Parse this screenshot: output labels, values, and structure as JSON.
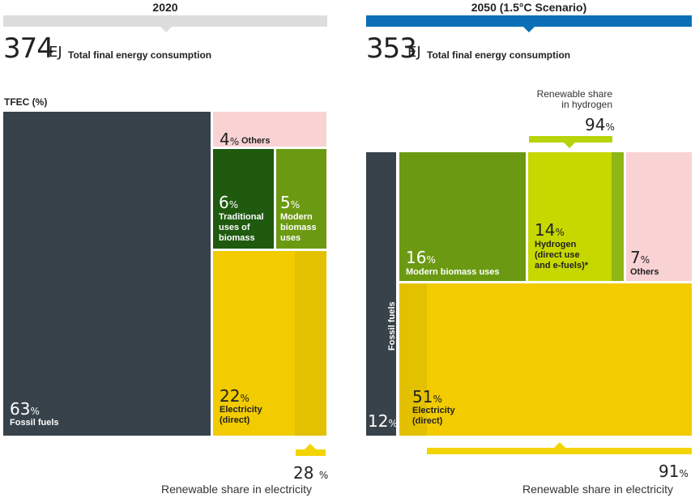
{
  "chart_data": {
    "type": "treemap",
    "panels": [
      {
        "id": "2020",
        "title": "2020",
        "total_value": "374",
        "total_unit": "EJ",
        "total_label": "Total final energy consumption",
        "axis_label": "TFEC (%)",
        "segments": [
          {
            "name": "Fossil fuels",
            "label": "Fossil fuels",
            "value": 63,
            "pct_text": "63",
            "color": "#37424a"
          },
          {
            "name": "Others",
            "label": "Others",
            "value": 4,
            "pct_text": "4",
            "color": "#f9d2d4"
          },
          {
            "name": "Traditional uses of biomass",
            "label_lines": [
              "Traditional",
              "uses of",
              "biomass"
            ],
            "value": 6,
            "pct_text": "6",
            "color": "#1f5a0f"
          },
          {
            "name": "Modern biomass uses",
            "label_lines": [
              "Modern",
              "biomass",
              "uses"
            ],
            "value": 5,
            "pct_text": "5",
            "color": "#6b9a12"
          },
          {
            "name": "Electricity (direct)",
            "label_lines": [
              "Electricity",
              "(direct)"
            ],
            "value": 22,
            "pct_text": "22",
            "color": "#f2cb00"
          }
        ],
        "renewable_electricity": {
          "value": 28,
          "value_text": "28",
          "label": "Renewable share in electricity"
        }
      },
      {
        "id": "2050",
        "title": "2050 (1.5°C Scenario)",
        "total_value": "353",
        "total_unit": "EJ",
        "total_label": "Total final energy consumption",
        "segments": [
          {
            "name": "Fossil fuels",
            "label": "Fossil fuels",
            "value": 12,
            "pct_text": "12",
            "color": "#37424a"
          },
          {
            "name": "Modern biomass uses",
            "label": "Modern biomass uses",
            "value": 16,
            "pct_text": "16",
            "color": "#6b9a12"
          },
          {
            "name": "Hydrogen (direct use and e-fuels)*",
            "label_lines": [
              "Hydrogen",
              "(direct use",
              "and e-fuels)*"
            ],
            "value": 14,
            "pct_text": "14",
            "color": "#c6d800"
          },
          {
            "name": "Others",
            "label": "Others",
            "value": 7,
            "pct_text": "7",
            "color": "#f9d2d4"
          },
          {
            "name": "Electricity (direct)",
            "label_lines": [
              "Electricity",
              "(direct)"
            ],
            "value": 51,
            "pct_text": "51",
            "color": "#f2cb00"
          }
        ],
        "renewable_hydrogen": {
          "value": 94,
          "value_text": "94",
          "label_lines": [
            "Renewable share",
            "in hydrogen"
          ]
        },
        "renewable_electricity": {
          "value": 91,
          "value_text": "91",
          "label": "Renewable share in electricity"
        }
      }
    ],
    "percent_sign": "%"
  },
  "colors": {
    "header_2020": "#dddddd",
    "header_2050": "#0a6fb5",
    "renewable_marker": "#f2d500",
    "hydrogen_marker": "#b7d30a",
    "electricity_renewable_shade": "#e3c100",
    "hydrogen_renewable_shade": "#8fb614"
  }
}
